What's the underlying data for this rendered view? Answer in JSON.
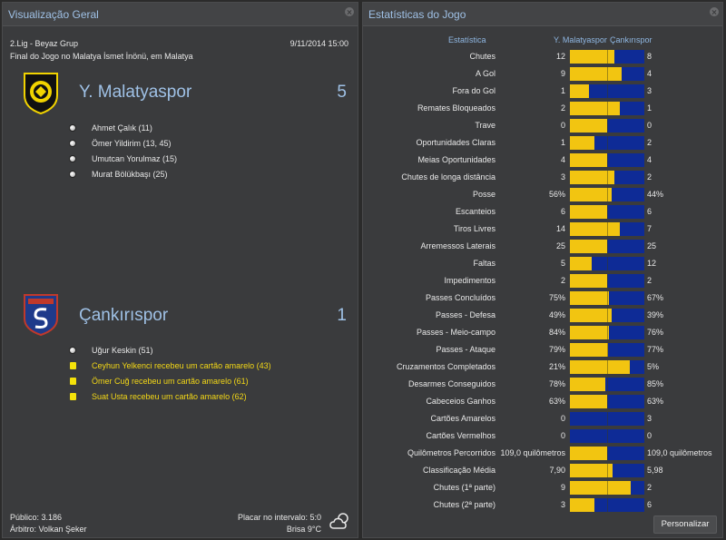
{
  "left": {
    "title": "Visualização Geral",
    "league": "2.Lig - Beyaz Grup",
    "date": "9/11/2014 15:00",
    "venue": "Final do Jogo no Malatya İsmet İnönü, em Malatya",
    "home": {
      "name": "Y. Malatyaspor",
      "score": "5",
      "colors": {
        "primary": "#f1d300",
        "secondary": "#111111"
      },
      "events": [
        {
          "type": "goal",
          "text": "Ahmet Çalık (11)"
        },
        {
          "type": "goal",
          "text": "Ömer Yildirim (13, 45)"
        },
        {
          "type": "goal",
          "text": "Umutcan Yorulmaz (15)"
        },
        {
          "type": "goal",
          "text": "Murat Bölükbaşı (25)"
        }
      ]
    },
    "away": {
      "name": "Çankırıspor",
      "score": "1",
      "colors": {
        "primary": "#1f3a8a",
        "secondary": "#c0392b"
      },
      "events": [
        {
          "type": "goal",
          "text": "Uğur Keskin (51)"
        },
        {
          "type": "yellow",
          "text": "Ceyhun Yelkenci recebeu um cartão amarelo (43)"
        },
        {
          "type": "yellow",
          "text": "Ömer Cuğ recebeu um cartão amarelo (61)"
        },
        {
          "type": "yellow",
          "text": "Suat Usta recebeu um cartão amarelo (62)"
        }
      ]
    },
    "footer": {
      "attendance": "Público: 3.186",
      "referee": "Árbitro: Volkan Şeker",
      "halftime": "Placar no intervalo: 5:0",
      "weather": "Brisa 9°C",
      "weather_icon": "partly-cloudy-icon"
    }
  },
  "right": {
    "title": "Estatísticas do Jogo",
    "col_stat": "Estatística",
    "col_home": "Y. Malatyaspor",
    "col_away": "Çankırıspor",
    "customize": "Personalizar",
    "stats": [
      {
        "label": "Chutes",
        "home": "12",
        "away": "8",
        "share": 0.6
      },
      {
        "label": "A Gol",
        "home": "9",
        "away": "4",
        "share": 0.69
      },
      {
        "label": "Fora do Gol",
        "home": "1",
        "away": "3",
        "share": 0.25
      },
      {
        "label": "Remates Bloqueados",
        "home": "2",
        "away": "1",
        "share": 0.67
      },
      {
        "label": "Trave",
        "home": "0",
        "away": "0",
        "share": 0.5
      },
      {
        "label": "Oportunidades Claras",
        "home": "1",
        "away": "2",
        "share": 0.33
      },
      {
        "label": "Meias Oportunidades",
        "home": "4",
        "away": "4",
        "share": 0.5
      },
      {
        "label": "Chutes de longa distância",
        "home": "3",
        "away": "2",
        "share": 0.6
      },
      {
        "label": "Posse",
        "home": "56%",
        "away": "44%",
        "share": 0.56
      },
      {
        "label": "Escanteios",
        "home": "6",
        "away": "6",
        "share": 0.5
      },
      {
        "label": "Tiros Livres",
        "home": "14",
        "away": "7",
        "share": 0.67
      },
      {
        "label": "Arremessos Laterais",
        "home": "25",
        "away": "25",
        "share": 0.5
      },
      {
        "label": "Faltas",
        "home": "5",
        "away": "12",
        "share": 0.29
      },
      {
        "label": "Impedimentos",
        "home": "2",
        "away": "2",
        "share": 0.5
      },
      {
        "label": "Passes Concluídos",
        "home": "75%",
        "away": "67%",
        "share": 0.53
      },
      {
        "label": "Passes - Defesa",
        "home": "49%",
        "away": "39%",
        "share": 0.56
      },
      {
        "label": "Passes - Meio-campo",
        "home": "84%",
        "away": "76%",
        "share": 0.52
      },
      {
        "label": "Passes - Ataque",
        "home": "79%",
        "away": "77%",
        "share": 0.51
      },
      {
        "label": "Cruzamentos Completados",
        "home": "21%",
        "away": "5%",
        "share": 0.8
      },
      {
        "label": "Desarmes Conseguidos",
        "home": "78%",
        "away": "85%",
        "share": 0.48
      },
      {
        "label": "Cabeceios Ganhos",
        "home": "63%",
        "away": "63%",
        "share": 0.5
      },
      {
        "label": "Cartões Amarelos",
        "home": "0",
        "away": "3",
        "share": 0.0
      },
      {
        "label": "Cartões Vermelhos",
        "home": "0",
        "away": "0",
        "share": 0.0
      },
      {
        "label": "Quilômetros Percorridos",
        "home": "109,0 quilômetros",
        "away": "109,0 quilômetros",
        "share": 0.5
      },
      {
        "label": "Classificação Média",
        "home": "7,90",
        "away": "5,98",
        "share": 0.57
      },
      {
        "label": "Chutes (1ª parte)",
        "home": "9",
        "away": "2",
        "share": 0.82
      },
      {
        "label": "Chutes (2ª parte)",
        "home": "3",
        "away": "6",
        "share": 0.33
      }
    ],
    "colors": {
      "home_bar": "#f2c511",
      "away_bar": "#0e2b96"
    }
  }
}
